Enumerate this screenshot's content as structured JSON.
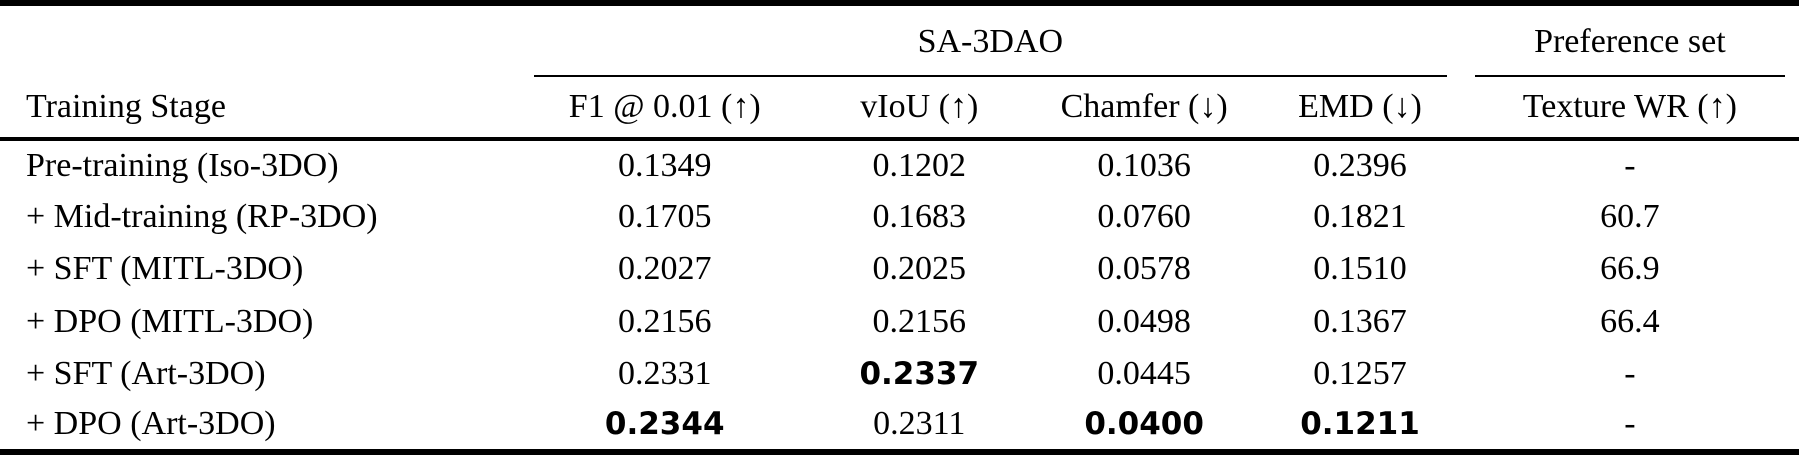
{
  "table": {
    "group_headers": {
      "sa3dao": "SA-3DAO",
      "preference": "Preference set"
    },
    "columns": {
      "stage": "Training Stage",
      "f1": "F1 @ 0.01 (↑)",
      "viou": "vIoU (↑)",
      "chamfer": "Chamfer (↓)",
      "emd": "EMD (↓)",
      "texture_wr": "Texture WR (↑)"
    },
    "rows": [
      {
        "stage": "Pre-training (Iso-3DO)",
        "values": [
          "0.1349",
          "0.1202",
          "0.1036",
          "0.2396",
          "-"
        ],
        "bold": [
          false,
          false,
          false,
          false,
          false
        ]
      },
      {
        "stage": "+ Mid-training (RP-3DO)",
        "values": [
          "0.1705",
          "0.1683",
          "0.0760",
          "0.1821",
          "60.7"
        ],
        "bold": [
          false,
          false,
          false,
          false,
          false
        ]
      },
      {
        "stage": "+ SFT (MITL-3DO)",
        "values": [
          "0.2027",
          "0.2025",
          "0.0578",
          "0.1510",
          "66.9"
        ],
        "bold": [
          false,
          false,
          false,
          false,
          false
        ]
      },
      {
        "stage": "+ DPO (MITL-3DO)",
        "values": [
          "0.2156",
          "0.2156",
          "0.0498",
          "0.1367",
          "66.4"
        ],
        "bold": [
          false,
          false,
          false,
          false,
          false
        ]
      },
      {
        "stage": "+ SFT (Art-3DO)",
        "values": [
          "0.2331",
          "0.2337",
          "0.0445",
          "0.1257",
          "-"
        ],
        "bold": [
          false,
          true,
          false,
          false,
          false
        ]
      },
      {
        "stage": "+ DPO (Art-3DO)",
        "values": [
          "0.2344",
          "0.2311",
          "0.0400",
          "0.1211",
          "-"
        ],
        "bold": [
          true,
          false,
          true,
          true,
          false
        ]
      }
    ]
  },
  "colors": {
    "text": "#000000",
    "background": "#ffffff",
    "rule": "#000000"
  }
}
